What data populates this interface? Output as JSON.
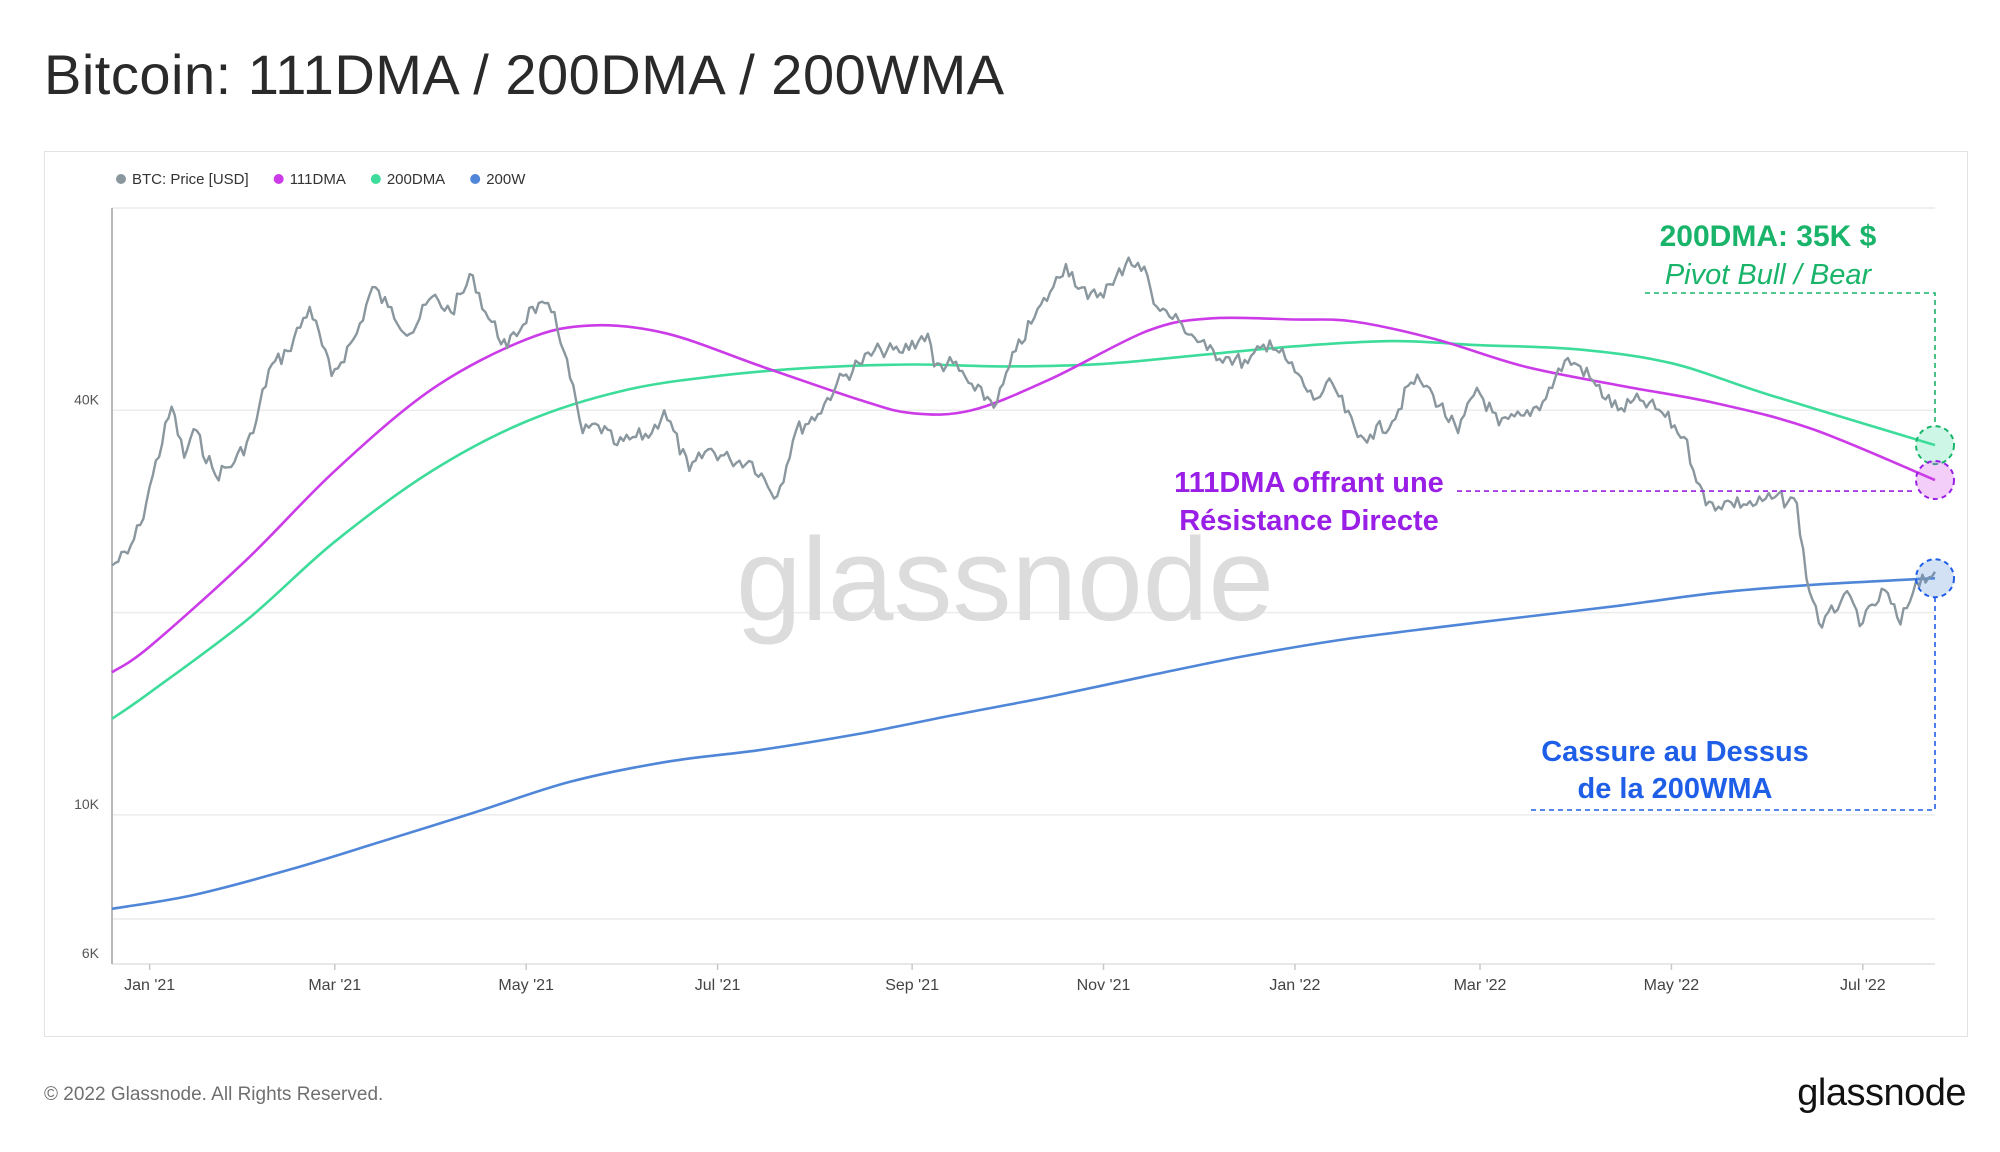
{
  "page": {
    "title": "Bitcoin: 111DMA / 200DMA / 200WMA",
    "copyright": "© 2022 Glassnode. All Rights Reserved.",
    "logo": "glassnode",
    "watermark": "glassnode"
  },
  "colors": {
    "price": "#8a979e",
    "dma111": "#cc3be8",
    "dma200": "#3ddc9a",
    "wma200": "#4f86d8",
    "annotation_green": "#19b46a",
    "annotation_purple": "#9a1fe6",
    "annotation_blue": "#1f5fe8"
  },
  "annotations": {
    "dma200_title": "200DMA: 35K $",
    "dma200_sub": "Pivot Bull / Bear",
    "dma111_line1": "111DMA offrant une",
    "dma111_line2": "Résistance Directe",
    "wma200_line1": "Cassure au Dessus",
    "wma200_line2": "de la 200WMA"
  },
  "chart_data": {
    "type": "line",
    "y_scale": "log",
    "ylim": [
      6000,
      80000
    ],
    "y_ticks": [
      {
        "value": 6000,
        "label": "6K"
      },
      {
        "value": 10000,
        "label": "10K"
      },
      {
        "value": 40000,
        "label": "40K"
      }
    ],
    "x_ticks": [
      {
        "date": "2021-01-01",
        "label": "Jan '21"
      },
      {
        "date": "2021-03-01",
        "label": "Mar '21"
      },
      {
        "date": "2021-05-01",
        "label": "May '21"
      },
      {
        "date": "2021-07-01",
        "label": "Jul '21"
      },
      {
        "date": "2021-09-01",
        "label": "Sep '21"
      },
      {
        "date": "2021-11-01",
        "label": "Nov '21"
      },
      {
        "date": "2022-01-01",
        "label": "Jan '22"
      },
      {
        "date": "2022-03-01",
        "label": "Mar '22"
      },
      {
        "date": "2022-05-01",
        "label": "May '22"
      },
      {
        "date": "2022-07-01",
        "label": "Jul '22"
      }
    ],
    "xlim": [
      "2020-12-20",
      "2022-07-24"
    ],
    "legend_position": "top-left",
    "series": [
      {
        "name": "BTC: Price [USD]",
        "key": "price",
        "points": [
          [
            "2020-12-20",
            23500
          ],
          [
            "2020-12-25",
            24500
          ],
          [
            "2020-12-29",
            27000
          ],
          [
            "2021-01-02",
            32000
          ],
          [
            "2021-01-08",
            40500
          ],
          [
            "2021-01-12",
            34000
          ],
          [
            "2021-01-15",
            37500
          ],
          [
            "2021-01-22",
            32000
          ],
          [
            "2021-01-28",
            33500
          ],
          [
            "2021-02-03",
            37000
          ],
          [
            "2021-02-08",
            46000
          ],
          [
            "2021-02-14",
            49000
          ],
          [
            "2021-02-21",
            57000
          ],
          [
            "2021-02-28",
            45000
          ],
          [
            "2021-03-08",
            52000
          ],
          [
            "2021-03-13",
            61000
          ],
          [
            "2021-03-18",
            57000
          ],
          [
            "2021-03-25",
            52000
          ],
          [
            "2021-04-01",
            59000
          ],
          [
            "2021-04-07",
            56000
          ],
          [
            "2021-04-14",
            63500
          ],
          [
            "2021-04-18",
            56000
          ],
          [
            "2021-04-25",
            49500
          ],
          [
            "2021-05-03",
            57000
          ],
          [
            "2021-05-10",
            56000
          ],
          [
            "2021-05-13",
            49000
          ],
          [
            "2021-05-19",
            37000
          ],
          [
            "2021-05-24",
            38000
          ],
          [
            "2021-05-30",
            35500
          ],
          [
            "2021-06-05",
            36500
          ],
          [
            "2021-06-10",
            37000
          ],
          [
            "2021-06-14",
            40000
          ],
          [
            "2021-06-22",
            32500
          ],
          [
            "2021-06-28",
            35000
          ],
          [
            "2021-07-05",
            33800
          ],
          [
            "2021-07-12",
            33500
          ],
          [
            "2021-07-20",
            29800
          ],
          [
            "2021-07-26",
            37300
          ],
          [
            "2021-08-02",
            39500
          ],
          [
            "2021-08-08",
            43800
          ],
          [
            "2021-08-15",
            47000
          ],
          [
            "2021-08-22",
            49300
          ],
          [
            "2021-08-28",
            48800
          ],
          [
            "2021-09-06",
            52000
          ],
          [
            "2021-09-08",
            46500
          ],
          [
            "2021-09-14",
            47000
          ],
          [
            "2021-09-21",
            42800
          ],
          [
            "2021-09-28",
            41000
          ],
          [
            "2021-10-04",
            49000
          ],
          [
            "2021-10-10",
            55000
          ],
          [
            "2021-10-16",
            61000
          ],
          [
            "2021-10-20",
            66000
          ],
          [
            "2021-10-27",
            58600
          ],
          [
            "2021-11-04",
            61500
          ],
          [
            "2021-11-09",
            67500
          ],
          [
            "2021-11-15",
            63500
          ],
          [
            "2021-11-18",
            57000
          ],
          [
            "2021-11-26",
            53700
          ],
          [
            "2021-12-04",
            49200
          ],
          [
            "2021-12-10",
            48000
          ],
          [
            "2021-12-17",
            47000
          ],
          [
            "2021-12-24",
            50800
          ],
          [
            "2021-12-30",
            47000
          ],
          [
            "2022-01-07",
            41500
          ],
          [
            "2022-01-13",
            43800
          ],
          [
            "2022-01-21",
            36500
          ],
          [
            "2022-01-25",
            36800
          ],
          [
            "2022-02-01",
            38500
          ],
          [
            "2022-02-07",
            44000
          ],
          [
            "2022-02-10",
            44200
          ],
          [
            "2022-02-14",
            42200
          ],
          [
            "2022-02-22",
            37000
          ],
          [
            "2022-02-28",
            43200
          ],
          [
            "2022-03-07",
            38000
          ],
          [
            "2022-03-15",
            39300
          ],
          [
            "2022-03-21",
            41200
          ],
          [
            "2022-03-28",
            47400
          ],
          [
            "2022-04-02",
            46500
          ],
          [
            "2022-04-07",
            43500
          ],
          [
            "2022-04-14",
            40000
          ],
          [
            "2022-04-21",
            41400
          ],
          [
            "2022-04-28",
            39700
          ],
          [
            "2022-05-05",
            36500
          ],
          [
            "2022-05-10",
            31000
          ],
          [
            "2022-05-12",
            28900
          ],
          [
            "2022-05-20",
            29200
          ],
          [
            "2022-05-28",
            29000
          ],
          [
            "2022-06-03",
            29700
          ],
          [
            "2022-06-10",
            29100
          ],
          [
            "2022-06-13",
            22500
          ],
          [
            "2022-06-18",
            19000
          ],
          [
            "2022-06-25",
            21300
          ],
          [
            "2022-07-01",
            19300
          ],
          [
            "2022-07-08",
            21600
          ],
          [
            "2022-07-13",
            19200
          ],
          [
            "2022-07-18",
            22300
          ],
          [
            "2022-07-24",
            23000
          ]
        ]
      },
      {
        "name": "111DMA",
        "key": "dma111",
        "points": [
          [
            "2020-12-20",
            16300
          ],
          [
            "2021-01-01",
            17800
          ],
          [
            "2021-02-01",
            24000
          ],
          [
            "2021-03-01",
            32500
          ],
          [
            "2021-04-01",
            43000
          ],
          [
            "2021-05-01",
            51000
          ],
          [
            "2021-05-22",
            53500
          ],
          [
            "2021-06-15",
            52000
          ],
          [
            "2021-07-15",
            46500
          ],
          [
            "2021-08-15",
            41500
          ],
          [
            "2021-09-01",
            39600
          ],
          [
            "2021-09-20",
            40000
          ],
          [
            "2021-10-15",
            44500
          ],
          [
            "2021-11-15",
            52500
          ],
          [
            "2021-12-05",
            54800
          ],
          [
            "2022-01-01",
            54600
          ],
          [
            "2022-01-20",
            54200
          ],
          [
            "2022-02-15",
            51000
          ],
          [
            "2022-03-15",
            46500
          ],
          [
            "2022-04-15",
            43500
          ],
          [
            "2022-05-15",
            41000
          ],
          [
            "2022-06-15",
            37500
          ],
          [
            "2022-07-24",
            31500
          ]
        ]
      },
      {
        "name": "200DMA",
        "key": "dma200",
        "points": [
          [
            "2020-12-20",
            13900
          ],
          [
            "2021-01-01",
            15200
          ],
          [
            "2021-02-01",
            19500
          ],
          [
            "2021-03-01",
            25500
          ],
          [
            "2021-04-01",
            32500
          ],
          [
            "2021-05-01",
            38500
          ],
          [
            "2021-06-01",
            42800
          ],
          [
            "2021-07-01",
            45000
          ],
          [
            "2021-08-01",
            46300
          ],
          [
            "2021-09-01",
            46800
          ],
          [
            "2021-10-01",
            46500
          ],
          [
            "2021-11-01",
            46900
          ],
          [
            "2021-12-01",
            48300
          ],
          [
            "2022-01-01",
            49800
          ],
          [
            "2022-02-01",
            50700
          ],
          [
            "2022-03-01",
            50000
          ],
          [
            "2022-04-01",
            49300
          ],
          [
            "2022-05-01",
            47000
          ],
          [
            "2022-06-01",
            42200
          ],
          [
            "2022-07-24",
            35500
          ]
        ]
      },
      {
        "name": "200W",
        "key": "wma200",
        "points": [
          [
            "2020-12-20",
            7250
          ],
          [
            "2021-01-15",
            7600
          ],
          [
            "2021-02-15",
            8300
          ],
          [
            "2021-03-15",
            9100
          ],
          [
            "2021-04-15",
            10100
          ],
          [
            "2021-05-15",
            11200
          ],
          [
            "2021-06-15",
            12000
          ],
          [
            "2021-07-15",
            12500
          ],
          [
            "2021-08-15",
            13200
          ],
          [
            "2021-09-15",
            14100
          ],
          [
            "2021-10-15",
            15000
          ],
          [
            "2021-11-15",
            16100
          ],
          [
            "2021-12-15",
            17200
          ],
          [
            "2022-01-15",
            18200
          ],
          [
            "2022-02-15",
            19000
          ],
          [
            "2022-03-15",
            19700
          ],
          [
            "2022-04-15",
            20500
          ],
          [
            "2022-05-15",
            21400
          ],
          [
            "2022-06-15",
            22000
          ],
          [
            "2022-07-24",
            22500
          ]
        ]
      }
    ]
  }
}
